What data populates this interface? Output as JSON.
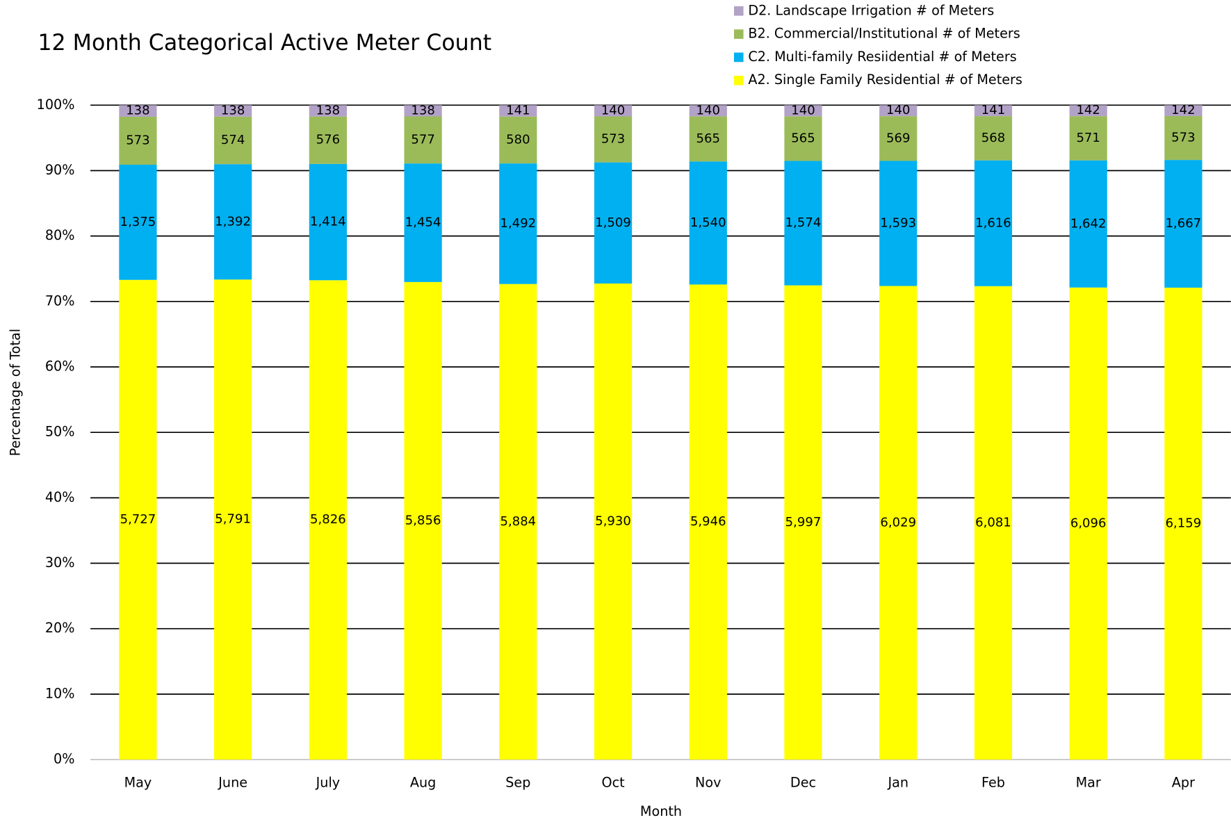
{
  "chart_data": {
    "type": "bar",
    "stacking": "percent",
    "title": "12 Month Categorical Active Meter Count",
    "x_label": "Month",
    "y_label": "Percentage of Total",
    "categories": [
      "May",
      "June",
      "July",
      "Aug",
      "Sep",
      "Oct",
      "Nov",
      "Dec",
      "Jan",
      "Feb",
      "Mar",
      "Apr"
    ],
    "series": [
      {
        "name": "A2. Single Family Residential # of Meters",
        "color": "#ffff00",
        "values": [
          5727,
          5791,
          5826,
          5856,
          5884,
          5930,
          5946,
          5997,
          6029,
          6081,
          6096,
          6159
        ],
        "value_labels": [
          "5,727",
          "5,791",
          "5,826",
          "5,856",
          "5,884",
          "5,930",
          "5,946",
          "5,997",
          "6,029",
          "6,081",
          "6,096",
          "6,159"
        ]
      },
      {
        "name": "C2. Multi-family Resiidential # of Meters",
        "color": "#00b0f0",
        "values": [
          1375,
          1392,
          1414,
          1454,
          1492,
          1509,
          1540,
          1574,
          1593,
          1616,
          1642,
          1667
        ],
        "value_labels": [
          "1,375",
          "1,392",
          "1,414",
          "1,454",
          "1,492",
          "1,509",
          "1,540",
          "1,574",
          "1,593",
          "1,616",
          "1,642",
          "1,667"
        ]
      },
      {
        "name": "B2. Commercial/Institutional # of Meters",
        "color": "#9bbb59",
        "values": [
          573,
          574,
          576,
          577,
          580,
          573,
          565,
          565,
          569,
          568,
          571,
          573
        ]
      },
      {
        "name": "D2. Landscape Irrigation # of Meters",
        "color": "#b3a2c7",
        "values": [
          138,
          138,
          138,
          138,
          141,
          140,
          140,
          140,
          140,
          141,
          142,
          142
        ]
      }
    ],
    "ylim": [
      0,
      100
    ],
    "yticks": [
      {
        "value": 0,
        "label": "0%"
      },
      {
        "value": 10,
        "label": "10%"
      },
      {
        "value": 20,
        "label": "20%"
      },
      {
        "value": 30,
        "label": "30%"
      },
      {
        "value": 40,
        "label": "40%"
      },
      {
        "value": 50,
        "label": "50%"
      },
      {
        "value": 60,
        "label": "60%"
      },
      {
        "value": 70,
        "label": "70%"
      },
      {
        "value": 80,
        "label": "80%"
      },
      {
        "value": 90,
        "label": "90%"
      },
      {
        "value": 100,
        "label": "100%"
      }
    ],
    "grid": true,
    "legend": "top-right"
  }
}
